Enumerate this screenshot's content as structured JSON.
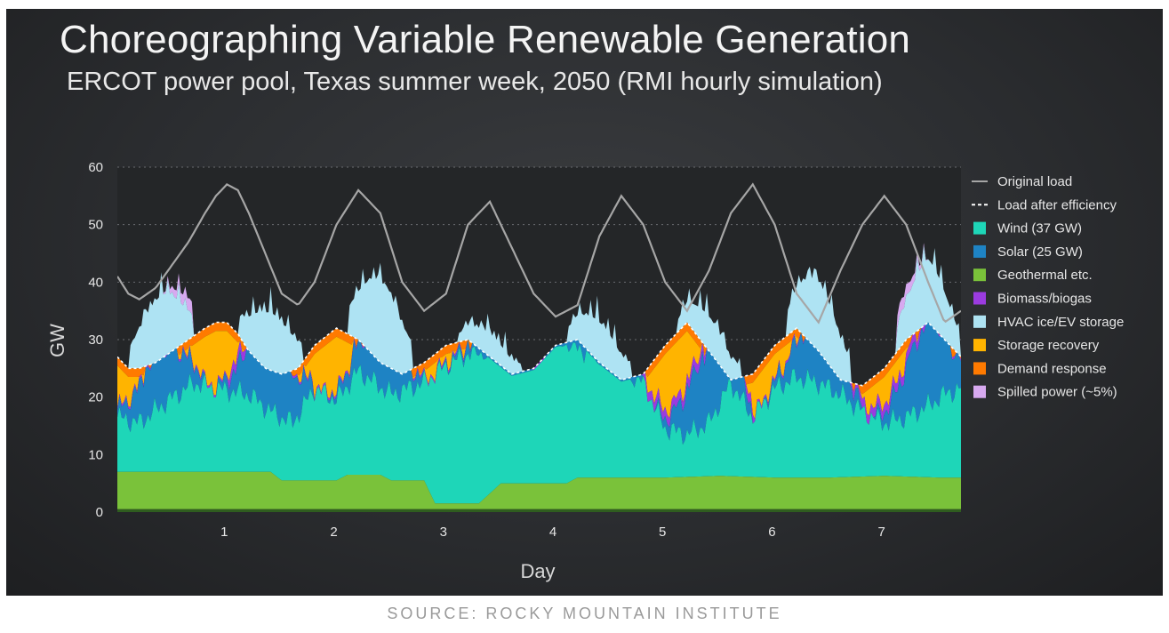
{
  "title": "Choreographing Variable Renewable Generation",
  "subtitle": "ERCOT power pool, Texas summer week, 2050 (RMI hourly simulation)",
  "source": "SOURCE: ROCKY MOUNTAIN INSTITUTE",
  "chart_data": {
    "type": "area",
    "xlabel": "Day",
    "ylabel": "GW",
    "xlim": [
      0,
      7.7
    ],
    "ylim": [
      0,
      60
    ],
    "x_ticks": [
      1,
      2,
      3,
      4,
      5,
      6,
      7
    ],
    "y_ticks": [
      0,
      10,
      20,
      30,
      40,
      50,
      60
    ],
    "grid": "horizontal dotted",
    "legend_position": "right",
    "legend": [
      {
        "label": "Original load",
        "color": "#a6a6a6",
        "kind": "line"
      },
      {
        "label": "Load after efficiency",
        "color": "#ffffff",
        "kind": "dashed"
      },
      {
        "label": "Wind (37 GW)",
        "color": "#1ed6b8",
        "kind": "area"
      },
      {
        "label": "Solar (25 GW)",
        "color": "#1e83c4",
        "kind": "area"
      },
      {
        "label": "Geothermal etc.",
        "color": "#7ac23a",
        "kind": "area"
      },
      {
        "label": "Biomass/biogas",
        "color": "#9b3be0",
        "kind": "area"
      },
      {
        "label": "HVAC ice/EV storage",
        "color": "#aee3f3",
        "kind": "area"
      },
      {
        "label": "Storage recovery",
        "color": "#ffb400",
        "kind": "area"
      },
      {
        "label": "Demand response",
        "color": "#ff7a00",
        "kind": "area"
      },
      {
        "label": "Spilled power (~5%)",
        "color": "#d7a9f0",
        "kind": "area"
      }
    ],
    "series": {
      "original_load": {
        "x": [
          0,
          0.1,
          0.2,
          0.35,
          0.5,
          0.65,
          0.8,
          0.9,
          1.0,
          1.1,
          1.2,
          1.35,
          1.5,
          1.65,
          1.8,
          2.0,
          2.2,
          2.4,
          2.6,
          2.8,
          3.0,
          3.2,
          3.4,
          3.6,
          3.8,
          4.0,
          4.2,
          4.4,
          4.6,
          4.8,
          5.0,
          5.2,
          5.4,
          5.6,
          5.8,
          6.0,
          6.2,
          6.4,
          6.6,
          6.8,
          7.0,
          7.2,
          7.4,
          7.55,
          7.7
        ],
        "y": [
          41,
          38,
          37,
          39,
          43,
          47,
          52,
          55,
          57,
          56,
          52,
          45,
          38,
          36,
          40,
          50,
          56,
          52,
          40,
          35,
          38,
          50,
          54,
          46,
          38,
          34,
          36,
          48,
          55,
          50,
          40,
          35,
          42,
          52,
          57,
          50,
          38,
          33,
          42,
          50,
          55,
          50,
          40,
          33,
          35
        ]
      },
      "load_after_efficiency": {
        "x": [
          0,
          0.1,
          0.2,
          0.35,
          0.5,
          0.65,
          0.8,
          0.9,
          1.0,
          1.1,
          1.2,
          1.35,
          1.5,
          1.65,
          1.8,
          2.0,
          2.2,
          2.4,
          2.6,
          2.8,
          3.0,
          3.2,
          3.4,
          3.6,
          3.8,
          4.0,
          4.2,
          4.4,
          4.6,
          4.8,
          5.0,
          5.2,
          5.4,
          5.6,
          5.8,
          6.0,
          6.2,
          6.4,
          6.6,
          6.8,
          7.0,
          7.2,
          7.4,
          7.55,
          7.7
        ],
        "y": [
          27,
          25,
          25,
          26,
          28,
          30,
          32,
          33,
          33,
          31,
          28,
          25,
          24,
          25,
          29,
          32,
          30,
          26,
          24,
          26,
          29,
          30,
          27,
          24,
          25,
          29,
          30,
          26,
          23,
          24,
          29,
          33,
          28,
          23,
          24,
          29,
          32,
          28,
          23,
          22,
          25,
          30,
          33,
          30,
          27
        ]
      },
      "geothermal": {
        "x": [
          0,
          1.4,
          1.5,
          2.0,
          2.1,
          2.4,
          2.5,
          2.8,
          2.9,
          3.3,
          3.5,
          3.6,
          4.1,
          4.2,
          5.0,
          5.5,
          6.0,
          6.5,
          7.0,
          7.5,
          7.7
        ],
        "y": [
          6.5,
          6.5,
          5,
          5,
          6,
          6,
          5,
          5,
          1,
          1,
          4.5,
          4.5,
          4.5,
          5.5,
          5.5,
          5.8,
          5.5,
          5.5,
          5.8,
          5.5,
          5.5
        ]
      },
      "wind": {
        "x": [
          0,
          0.2,
          0.4,
          0.7,
          0.9,
          1.2,
          1.4,
          1.6,
          1.8,
          2.0,
          2.2,
          2.5,
          2.8,
          3.0,
          3.2,
          3.5,
          3.8,
          4.0,
          4.2,
          4.5,
          4.8,
          5.0,
          5.2,
          5.4,
          5.6,
          5.8,
          6.0,
          6.2,
          6.4,
          6.6,
          6.8,
          7.0,
          7.2,
          7.4,
          7.55,
          7.7
        ],
        "y": [
          16,
          15,
          18,
          22,
          21,
          20,
          17,
          15,
          21,
          19,
          24,
          20,
          22,
          25,
          27,
          28,
          29,
          30,
          28,
          26,
          22,
          14,
          13,
          15,
          22,
          16,
          21,
          23,
          22,
          20,
          17,
          15,
          16,
          18,
          20,
          21
        ]
      },
      "spilled": {
        "x": [
          0.4,
          0.6,
          0.8,
          1.0,
          6.8,
          7.0,
          7.2,
          7.4
        ],
        "y": [
          40,
          44,
          46,
          42,
          38,
          42,
          40,
          36
        ]
      }
    }
  }
}
